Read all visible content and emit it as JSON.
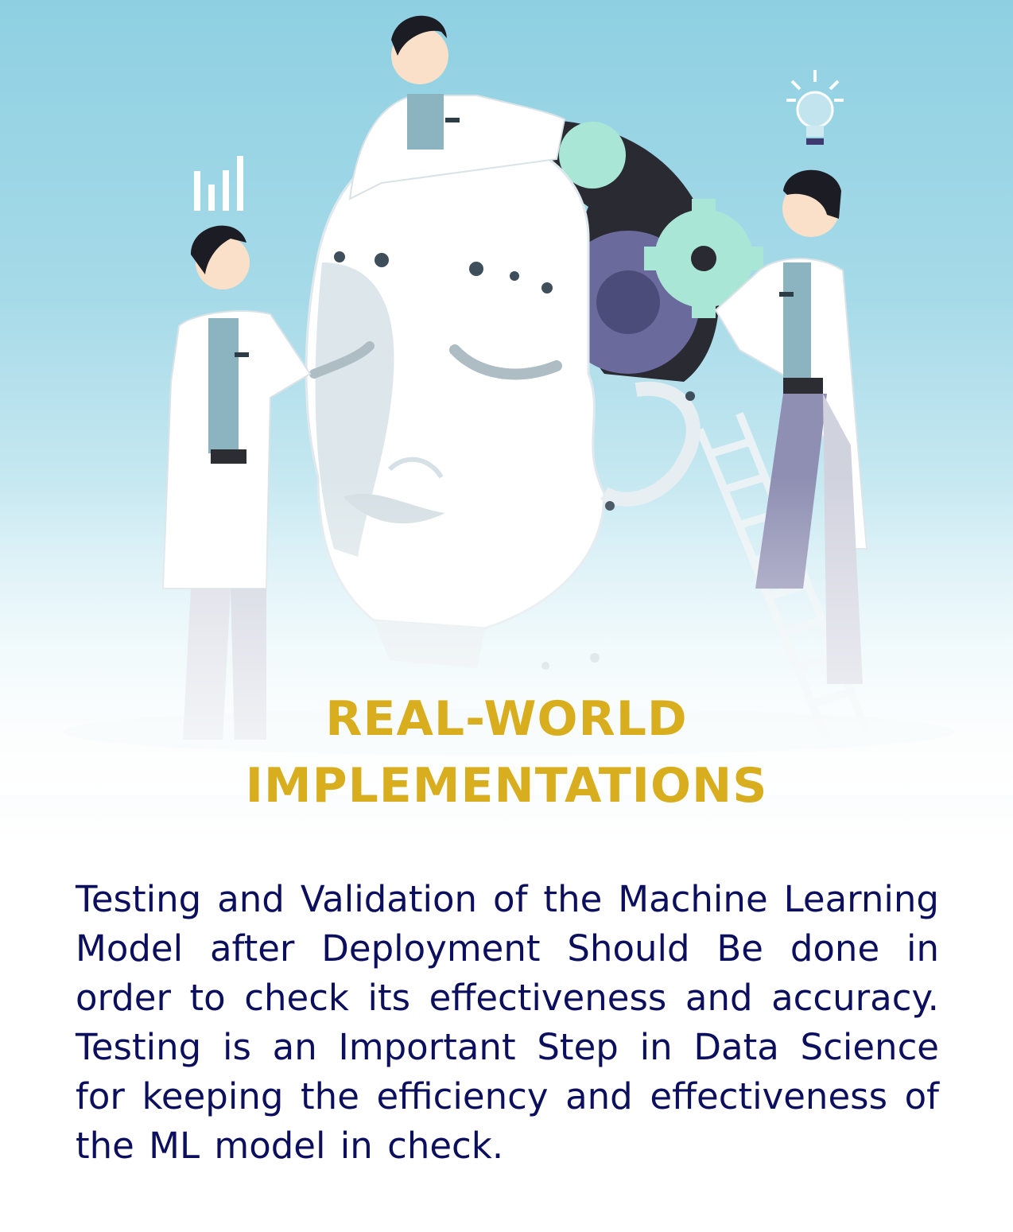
{
  "headline": {
    "line1": "REAL-WORLD",
    "line2": "IMPLEMENTATIONS"
  },
  "body": {
    "paragraph": "Testing and Validation of the Machine Learning Model after Deployment Should Be done in order to check its effectiveness and accuracy. Testing is an Important Step in Data Science for keeping the efficiency and effectiveness of the ML model in check."
  },
  "illustration": {
    "subject": "three scientists in lab coats assembling a robotic head with gears",
    "icons": [
      "bar-chart-icon",
      "lightbulb-icon",
      "gear-icon",
      "ladder"
    ]
  },
  "colors": {
    "sky": "#8ed0e2",
    "headline": "#d8ae1f",
    "body_text": "#0c0f5e",
    "gear_mint": "#a9e6d6",
    "gear_dark": "#2a2a33",
    "gear_purple": "#6a6a9c"
  }
}
